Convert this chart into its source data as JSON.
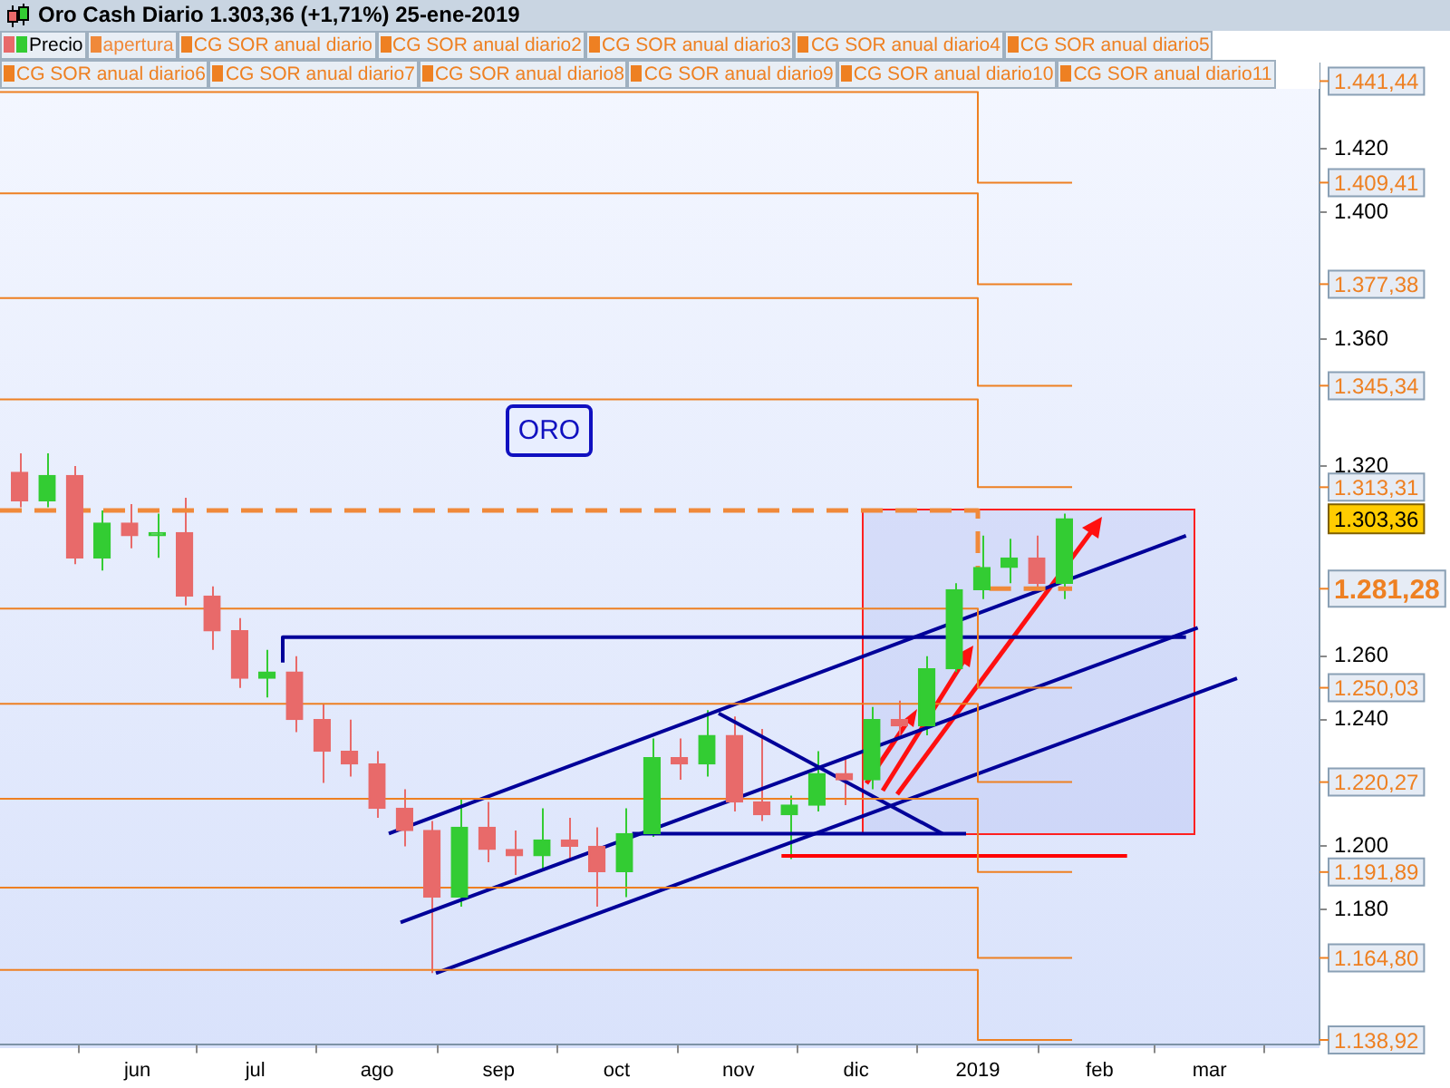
{
  "chart_data": {
    "type": "candlestick",
    "title": "Oro Cash   Diario   1.303,36 (+1,71%)   25-ene-2019",
    "xlim": [
      "2018-04-27",
      "2019-03-29"
    ],
    "xticks": [
      {
        "value": "2018-06-01",
        "label": "jun"
      },
      {
        "value": "2018-07-01",
        "label": "jul"
      },
      {
        "value": "2018-08-01",
        "label": "ago"
      },
      {
        "value": "2018-09-01",
        "label": "sep"
      },
      {
        "value": "2018-10-01",
        "label": "oct"
      },
      {
        "value": "2018-11-01",
        "label": "nov"
      },
      {
        "value": "2018-12-01",
        "label": "dic"
      },
      {
        "value": "2019-01-01",
        "label": "2019"
      },
      {
        "value": "2019-02-01",
        "label": "feb"
      },
      {
        "value": "2019-03-01",
        "label": "mar"
      }
    ],
    "ylim": [
      1137.6,
      1447
    ],
    "yticks": [
      {
        "value": 1420,
        "label": "1.420"
      },
      {
        "value": 1400,
        "label": "1.400"
      },
      {
        "value": 1360,
        "label": "1.360"
      },
      {
        "value": 1320,
        "label": "1.320"
      },
      {
        "value": 1260,
        "label": "1.260"
      },
      {
        "value": 1240,
        "label": "1.240"
      },
      {
        "value": 1200,
        "label": "1.200"
      },
      {
        "value": 1180,
        "label": "1.180"
      }
    ],
    "y2lim": [
      1137.6,
      1447
    ],
    "y2ticks": [
      {
        "value": 1441.44,
        "label": "1.441,44"
      },
      {
        "value": 1409.41,
        "label": "1.409,41"
      },
      {
        "value": 1377.38,
        "label": "1.377,38"
      },
      {
        "value": 1345.34,
        "label": "1.345,34"
      },
      {
        "value": 1313.31,
        "label": "1.313,31"
      },
      {
        "value": 1281.28,
        "label": "1.281,28"
      },
      {
        "value": 1250.03,
        "label": "1.250,03"
      },
      {
        "value": 1220.27,
        "label": "1.220,27"
      },
      {
        "value": 1191.89,
        "label": "1.191,89"
      },
      {
        "value": 1164.8,
        "label": "1.164,80"
      },
      {
        "value": 1138.92,
        "label": "1.138,92"
      }
    ],
    "grid": false,
    "legend": "top",
    "marker": "none",
    "annotations": [
      "ORO",
      "1.303,36"
    ],
    "series": [
      {
        "name": "Precio",
        "type": "candlestick",
        "x": [
          "2018-05-02",
          "2018-05-09",
          "2018-05-16",
          "2018-05-23",
          "2018-05-30",
          "2018-06-06",
          "2018-06-13",
          "2018-06-20",
          "2018-06-27",
          "2018-07-04",
          "2018-07-11",
          "2018-07-18",
          "2018-07-25",
          "2018-08-01",
          "2018-08-08",
          "2018-08-15",
          "2018-08-22",
          "2018-08-29",
          "2018-09-05",
          "2018-09-12",
          "2018-09-19",
          "2018-09-26",
          "2018-10-03",
          "2018-10-10",
          "2018-10-17",
          "2018-10-24",
          "2018-10-31",
          "2018-11-07",
          "2018-11-14",
          "2018-11-21",
          "2018-11-28",
          "2018-12-05",
          "2018-12-12",
          "2018-12-19",
          "2018-12-26",
          "2019-01-02",
          "2019-01-09",
          "2019-01-16",
          "2019-01-23"
        ],
        "ohlc": [
          [
            1318,
            1324,
            1307,
            1309
          ],
          [
            1309,
            1324,
            1307,
            1317
          ],
          [
            1317,
            1320,
            1289,
            1291
          ],
          [
            1291,
            1306,
            1287,
            1302
          ],
          [
            1302,
            1308,
            1294,
            1298
          ],
          [
            1298,
            1305,
            1291,
            1299
          ],
          [
            1299,
            1310,
            1276,
            1279
          ],
          [
            1279,
            1282,
            1262,
            1268
          ],
          [
            1268,
            1272,
            1250,
            1253
          ],
          [
            1253,
            1262,
            1247,
            1255
          ],
          [
            1255,
            1260,
            1236,
            1240
          ],
          [
            1240,
            1245,
            1220,
            1230
          ],
          [
            1230,
            1240,
            1222,
            1226
          ],
          [
            1226,
            1230,
            1209,
            1212
          ],
          [
            1212,
            1218,
            1200,
            1205
          ],
          [
            1205,
            1208,
            1160,
            1184
          ],
          [
            1184,
            1215,
            1181,
            1206
          ],
          [
            1206,
            1214,
            1195,
            1199
          ],
          [
            1199,
            1205,
            1191,
            1197
          ],
          [
            1197,
            1212,
            1193,
            1202
          ],
          [
            1202,
            1209,
            1196,
            1200
          ],
          [
            1200,
            1206,
            1181,
            1192
          ],
          [
            1192,
            1212,
            1184,
            1204
          ],
          [
            1204,
            1234,
            1203,
            1228
          ],
          [
            1228,
            1234,
            1221,
            1226
          ],
          [
            1226,
            1243,
            1222,
            1235
          ],
          [
            1235,
            1241,
            1211,
            1214
          ],
          [
            1214,
            1237,
            1208,
            1210
          ],
          [
            1210,
            1216,
            1196,
            1213
          ],
          [
            1213,
            1230,
            1211,
            1223
          ],
          [
            1223,
            1228,
            1213,
            1221
          ],
          [
            1221,
            1244,
            1218,
            1240
          ],
          [
            1240,
            1246,
            1234,
            1238
          ],
          [
            1238,
            1260,
            1235,
            1256
          ],
          [
            1256,
            1283,
            1255,
            1281
          ],
          [
            1281,
            1298,
            1278,
            1288
          ],
          [
            1288,
            1297,
            1283,
            1291
          ],
          [
            1291,
            1298,
            1280,
            1283
          ],
          [
            1283,
            1305,
            1278,
            1303.36
          ]
        ],
        "colors": [
          "#e86a6a",
          "#33cc33",
          "#e86a6a",
          "#33cc33",
          "#e86a6a",
          "#33cc33",
          "#e86a6a",
          "#e86a6a",
          "#e86a6a",
          "#33cc33",
          "#e86a6a",
          "#e86a6a",
          "#e86a6a",
          "#e86a6a",
          "#e86a6a",
          "#e86a6a",
          "#33cc33",
          "#e86a6a",
          "#e86a6a",
          "#33cc33",
          "#e86a6a",
          "#e86a6a",
          "#33cc33",
          "#33cc33",
          "#e86a6a",
          "#33cc33",
          "#e86a6a",
          "#e86a6a",
          "#33cc33",
          "#33cc33",
          "#e86a6a",
          "#33cc33",
          "#e86a6a",
          "#33cc33",
          "#33cc33",
          "#33cc33",
          "#33cc33",
          "#e86a6a",
          "#33cc33"
        ]
      },
      {
        "name": "apertura",
        "type": "line",
        "line_style": "dashed",
        "color": "#f0893a",
        "x": [
          "2018-04-27",
          "2019-01-01",
          "2019-01-01",
          "2019-01-25"
        ],
        "values": [
          1306,
          1306,
          1281.28,
          1281.28
        ]
      },
      {
        "name": "CG SOR anual diario",
        "type": "line",
        "color": "#ee8022",
        "values": [
          null
        ]
      },
      {
        "name": "CG SOR anual diario2",
        "type": "line",
        "color": "#ee8022",
        "x": [
          "2018-04-27",
          "2019-01-01",
          "2019-01-01",
          "2019-01-25"
        ],
        "values": [
          1438,
          1438,
          1409.41,
          1409.41
        ]
      },
      {
        "name": "CG SOR anual diario3",
        "type": "line",
        "color": "#ee8022",
        "x": [
          "2018-04-27",
          "2019-01-01",
          "2019-01-01",
          "2019-01-25"
        ],
        "values": [
          1406,
          1406,
          1377.38,
          1377.38
        ]
      },
      {
        "name": "CG SOR anual diario4",
        "type": "line",
        "color": "#ee8022",
        "x": [
          "2018-04-27",
          "2019-01-01",
          "2019-01-01",
          "2019-01-25"
        ],
        "values": [
          1373,
          1373,
          1345.34,
          1345.34
        ]
      },
      {
        "name": "CG SOR anual diario5",
        "type": "line",
        "color": "#ee8022",
        "x": [
          "2018-04-27",
          "2019-01-01",
          "2019-01-01",
          "2019-01-25"
        ],
        "values": [
          1341,
          1341,
          1313.31,
          1313.31
        ]
      },
      {
        "name": "CG SOR anual diario6",
        "type": "line",
        "color": "#ee8022",
        "x": [
          "2018-04-27",
          "2019-01-01",
          "2019-01-01",
          "2019-01-25"
        ],
        "values": [
          1275,
          1275,
          1250.03,
          1250.03
        ]
      },
      {
        "name": "CG SOR anual diario7",
        "type": "line",
        "color": "#ee8022",
        "x": [
          "2018-04-27",
          "2019-01-01",
          "2019-01-01",
          "2019-01-25"
        ],
        "values": [
          1245,
          1245,
          1220.27,
          1220.27
        ]
      },
      {
        "name": "CG SOR anual diario8",
        "type": "line",
        "color": "#ee8022",
        "x": [
          "2018-04-27",
          "2019-01-01",
          "2019-01-01",
          "2019-01-25"
        ],
        "values": [
          1215,
          1215,
          1191.89,
          1191.89
        ]
      },
      {
        "name": "CG SOR anual diario9",
        "type": "line",
        "color": "#ee8022",
        "x": [
          "2018-04-27",
          "2019-01-01",
          "2019-01-01",
          "2019-01-25"
        ],
        "values": [
          1187,
          1187,
          1164.8,
          1164.8
        ]
      },
      {
        "name": "CG SOR anual diario10",
        "type": "line",
        "color": "#ee8022",
        "x": [
          "2018-04-27",
          "2019-01-01",
          "2019-01-01",
          "2019-01-25"
        ],
        "values": [
          1161,
          1161,
          1138.92,
          1138.92
        ]
      },
      {
        "name": "CG SOR anual diario11",
        "type": "line",
        "color": "#ee8022",
        "values": [
          null
        ]
      },
      {
        "type": "line",
        "color": "#000099",
        "x": [
          "2018-08-04",
          "2019-02-23"
        ],
        "values": [
          1204,
          1298
        ]
      },
      {
        "type": "line",
        "color": "#000099",
        "x": [
          "2018-08-07",
          "2019-02-26"
        ],
        "values": [
          1176,
          1269
        ]
      },
      {
        "type": "line",
        "color": "#000099",
        "x": [
          "2018-08-16",
          "2019-03-08"
        ],
        "values": [
          1160,
          1253
        ]
      },
      {
        "type": "line",
        "color": "#000099",
        "x": [
          "2018-07-08",
          "2018-07-08",
          "2019-02-23"
        ],
        "values": [
          1258,
          1266,
          1266
        ]
      },
      {
        "type": "line",
        "color": "#000099",
        "x": [
          "2018-10-27",
          "2018-12-23"
        ],
        "values": [
          1242,
          1204
        ]
      },
      {
        "type": "line",
        "color": "#000099",
        "x": [
          "2018-10-05",
          "2018-12-29"
        ],
        "values": [
          1204,
          1204
        ]
      },
      {
        "type": "line",
        "color": "#ff0000",
        "x": [
          "2018-11-12",
          "2019-02-08"
        ],
        "values": [
          1197,
          1197
        ]
      }
    ]
  }
}
